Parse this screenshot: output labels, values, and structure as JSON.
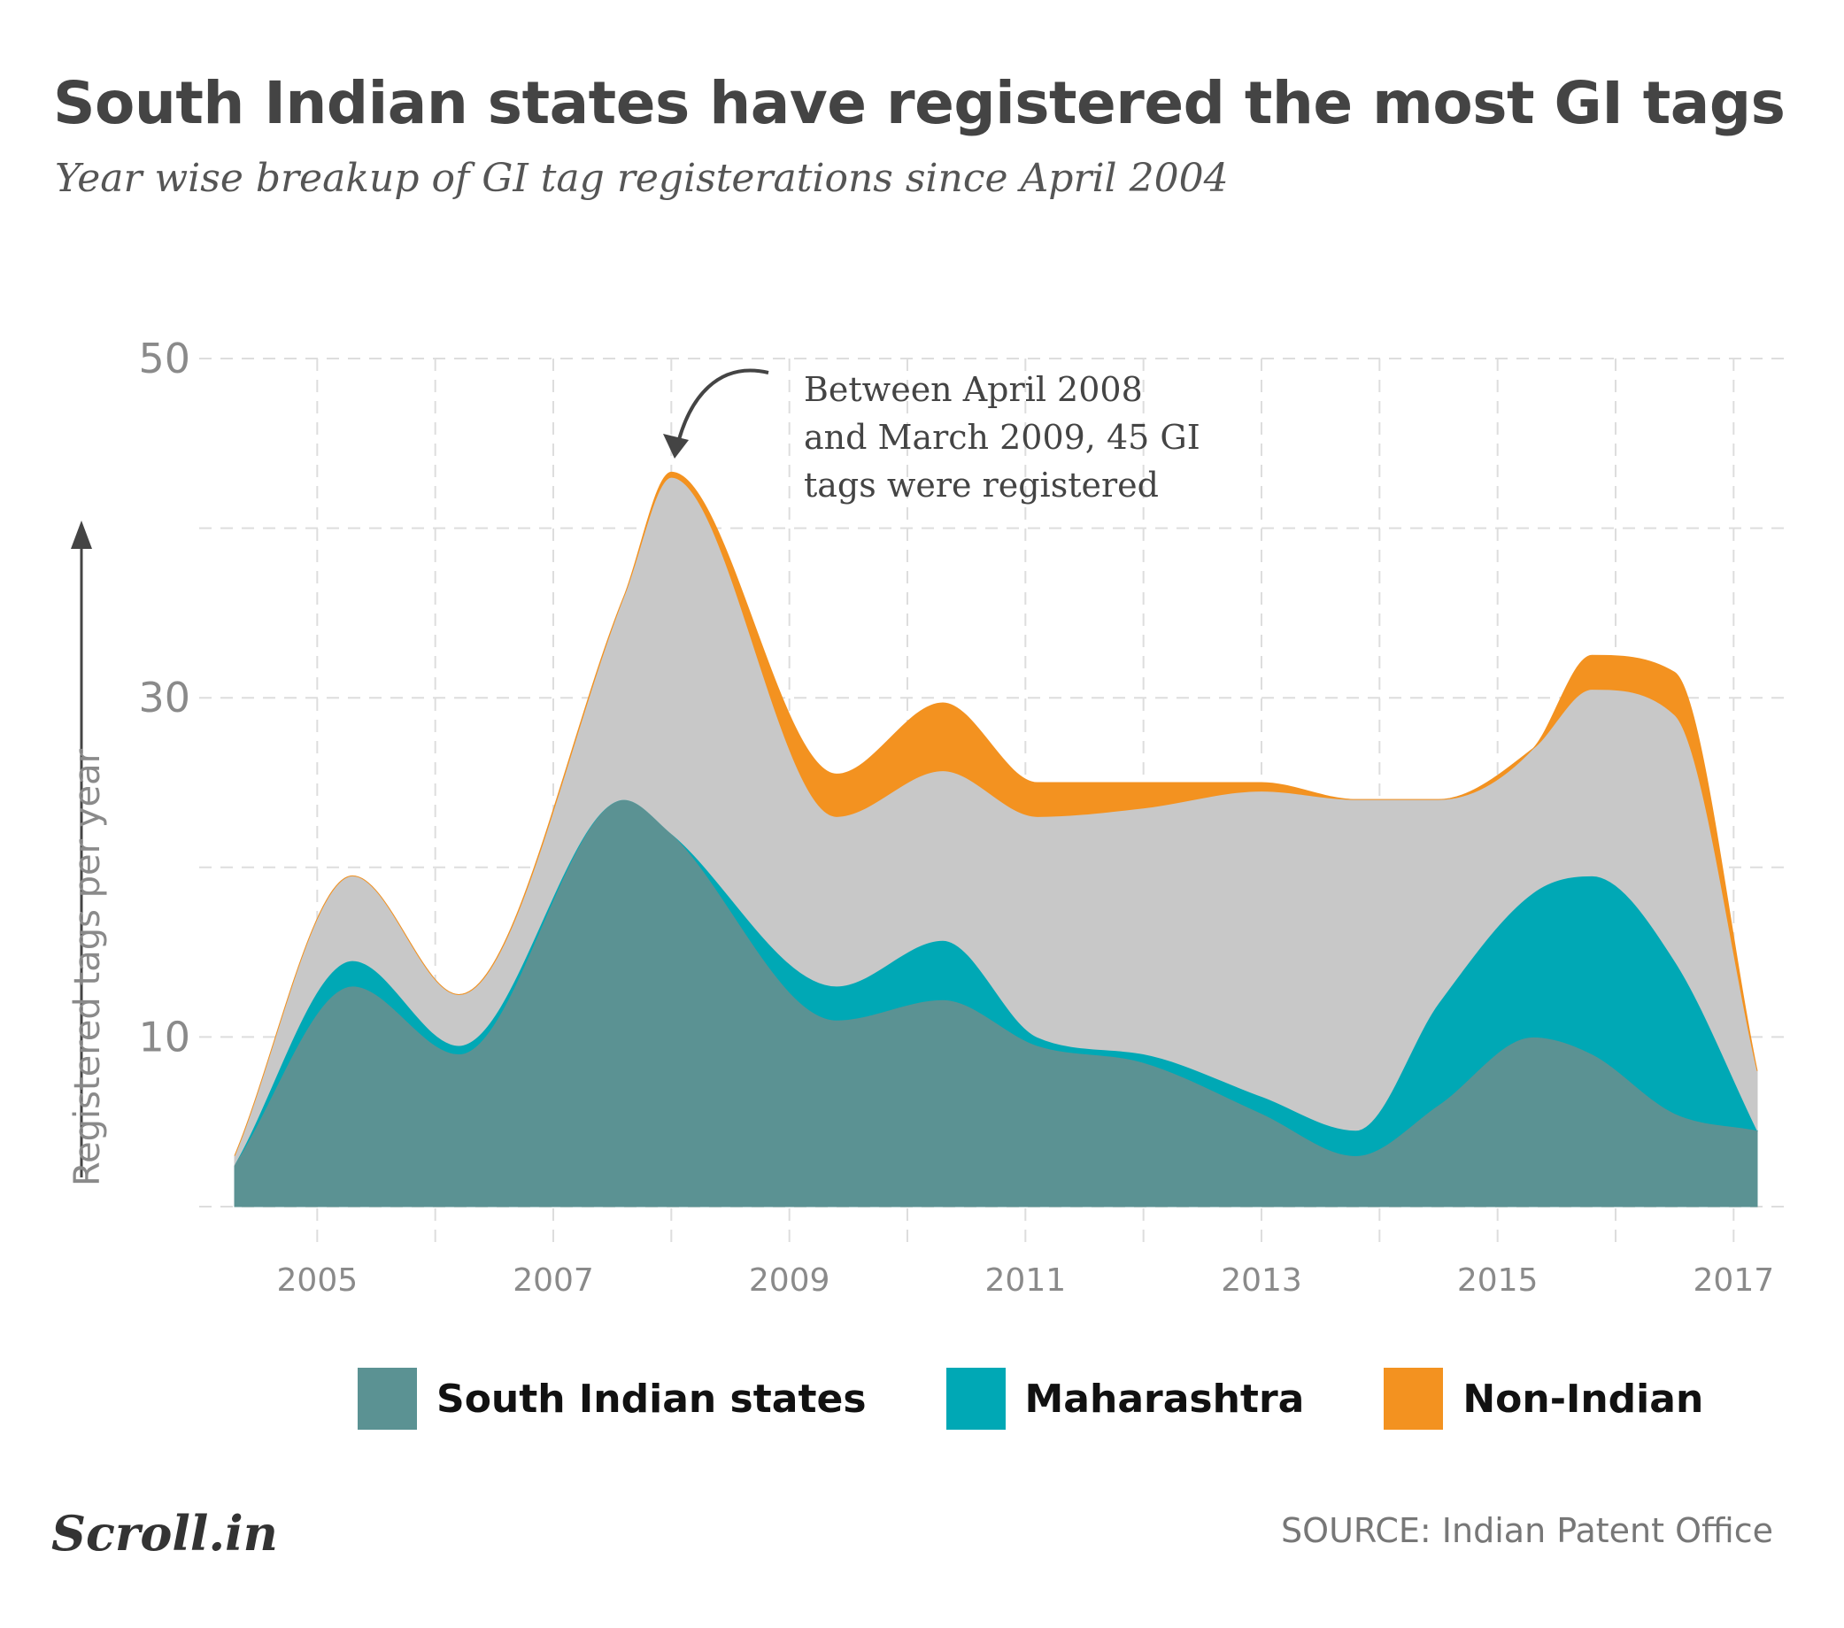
{
  "chart_data": {
    "type": "area",
    "stacked": true,
    "title": "South Indian states have registered the most GI tags",
    "subtitle": "Year wise breakup of GI tag registerations since April 2004",
    "ylabel": "Registered tags per year",
    "xlabel": "",
    "x": [
      2004.3,
      2005.3,
      2006.2,
      2007.6,
      2008.0,
      2009.4,
      2010.3,
      2011.1,
      2012.0,
      2013.0,
      2013.8,
      2014.5,
      2015.3,
      2015.8,
      2016.5,
      2017.2
    ],
    "series": [
      {
        "name": "South Indian states",
        "color": "#5b9293",
        "values": [
          2.5,
          13,
          9,
          24,
          22,
          11,
          12.2,
          9.5,
          8.5,
          5.5,
          3,
          6,
          10,
          9,
          5.5,
          4.5
        ]
      },
      {
        "name": "Maharashtra",
        "color": "#00a8b5",
        "values": [
          0,
          1.5,
          0.5,
          0,
          0,
          2,
          3.5,
          0.5,
          0.5,
          1,
          1.5,
          6,
          8.5,
          10.5,
          9,
          0
        ]
      },
      {
        "name": "",
        "color": "#c8c8c8",
        "values": [
          0.5,
          5,
          3,
          12,
          21,
          10,
          10,
          13,
          14.5,
          18,
          19.5,
          12,
          8.5,
          11,
          14.5,
          3.5
        ]
      },
      {
        "name": "Non-Indian",
        "color": "#f39220",
        "values": [
          0,
          0,
          0,
          0,
          0.3,
          2.5,
          4,
          2,
          1.5,
          0.5,
          0,
          0,
          0,
          2,
          2.5,
          0
        ]
      }
    ],
    "xlim": [
      2004.0,
      2017.5
    ],
    "ylim": [
      0,
      50
    ],
    "yticks": [
      {
        "value": 10,
        "label": "10"
      },
      {
        "value": 30,
        "label": "30"
      },
      {
        "value": 50,
        "label": "50"
      }
    ],
    "ygrid": [
      0,
      10,
      20,
      30,
      40,
      50
    ],
    "xticks": [
      {
        "value": 2005,
        "label": "2005"
      },
      {
        "value": 2007,
        "label": "2007"
      },
      {
        "value": 2009,
        "label": "2009"
      },
      {
        "value": 2011,
        "label": "2011"
      },
      {
        "value": 2013,
        "label": "2013"
      },
      {
        "value": 2015,
        "label": "2015"
      },
      {
        "value": 2017,
        "label": "2017"
      }
    ],
    "xgrid": [
      2005,
      2006,
      2007,
      2008,
      2009,
      2010,
      2011,
      2012,
      2013,
      2014,
      2015,
      2016,
      2017
    ],
    "grid": true,
    "legend_position": "bottom",
    "annotation": {
      "lines": [
        "Between April 2008",
        "and March 2009, 45 GI",
        "tags were registered"
      ],
      "target_x": 2008.0,
      "target_y": 45
    }
  },
  "legend": [
    {
      "label": "South Indian states",
      "color": "#5b9293"
    },
    {
      "label": "Maharashtra",
      "color": "#00a8b5"
    },
    {
      "label": "Non-Indian",
      "color": "#f39220"
    }
  ],
  "footer": {
    "brand": "Scroll.in",
    "source": "SOURCE: Indian Patent Office"
  }
}
